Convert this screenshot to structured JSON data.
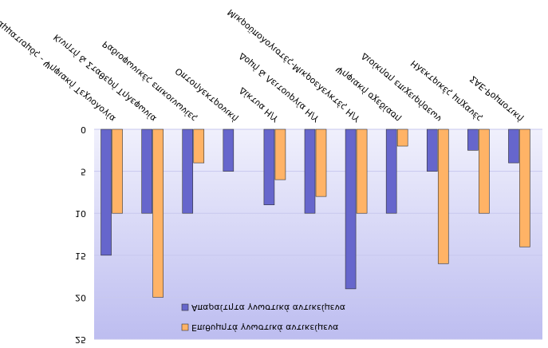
{
  "chart_data": {
    "type": "bar",
    "categories": [
      "Προγραμματισμός - Ψηφιακή Τεχνολογία",
      "Κινητή & Σταθερή Τηλεφωνία",
      "Ραδιοφωνικές επικοινωνίες",
      "Οπτοηλεκτρονική",
      "Δίκτυα Η/Υ",
      "Δομή & Λειτουργία Η/Υ",
      "Μικροϋπολογιστές-Μικροελεγκτές Η/Υ",
      "Ψηφιακή σχεδίαση",
      "Διοίκηση επιχειρήσεων",
      "Ηλεκτρικές μηχανές",
      "ΣΑΕ-Ρομποτική"
    ],
    "series": [
      {
        "name": "Απαραίτητα γνωστικά αντικείμενα",
        "color": "#6666cc",
        "values": [
          15,
          10,
          10,
          5,
          9,
          10,
          19,
          10,
          5,
          2.5,
          4
        ]
      },
      {
        "name": "Επιθυμητά γνωστικά αντικείμενα",
        "color": "#ffb366",
        "values": [
          10,
          20,
          4,
          0,
          6,
          8,
          10,
          2,
          16,
          10,
          14
        ]
      }
    ],
    "ylim": [
      0,
      25
    ],
    "yticks": [
      0,
      5,
      10,
      15,
      20,
      25
    ],
    "flipped_vertically": true
  }
}
